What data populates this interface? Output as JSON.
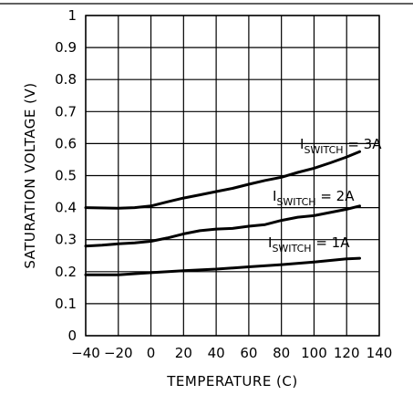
{
  "chart_data": {
    "type": "line",
    "xlabel": "TEMPERATURE (C)",
    "ylabel": "SATURATION VOLTAGE (V)",
    "xlim": [
      -40,
      140
    ],
    "ylim": [
      0,
      1
    ],
    "grid": true,
    "x_ticks": [
      "-40",
      "-20",
      "0",
      "20",
      "40",
      "60",
      "80",
      "100",
      "120",
      "140"
    ],
    "y_ticks": [
      "0",
      "0.1",
      "0.2",
      "0.3",
      "0.4",
      "0.5",
      "0.6",
      "0.7",
      "0.8",
      "0.9",
      "1"
    ],
    "series": [
      {
        "label_main": "I",
        "label_sub": "SWITCH",
        "label_value": " = 3A",
        "x": [
          -40,
          -20,
          -10,
          0,
          10,
          20,
          30,
          40,
          50,
          60,
          70,
          80,
          90,
          100,
          110,
          120,
          128
        ],
        "y": [
          0.4,
          0.398,
          0.4,
          0.405,
          0.418,
          0.43,
          0.44,
          0.45,
          0.46,
          0.473,
          0.485,
          0.495,
          0.51,
          0.523,
          0.54,
          0.558,
          0.575
        ]
      },
      {
        "label_main": "I",
        "label_sub": "SWITCH",
        "label_value": " = 2A",
        "x": [
          -40,
          -30,
          -20,
          -10,
          0,
          10,
          20,
          30,
          40,
          50,
          60,
          70,
          80,
          90,
          100,
          110,
          120,
          128
        ],
        "y": [
          0.28,
          0.283,
          0.287,
          0.29,
          0.295,
          0.305,
          0.318,
          0.328,
          0.333,
          0.335,
          0.342,
          0.347,
          0.36,
          0.37,
          0.375,
          0.385,
          0.395,
          0.405
        ]
      },
      {
        "label_main": "I",
        "label_sub": "SWITCH",
        "label_value": " = 1A",
        "x": [
          -40,
          -20,
          0,
          20,
          40,
          60,
          80,
          100,
          120,
          128
        ],
        "y": [
          0.19,
          0.19,
          0.197,
          0.203,
          0.208,
          0.215,
          0.222,
          0.23,
          0.24,
          0.242
        ]
      }
    ]
  }
}
